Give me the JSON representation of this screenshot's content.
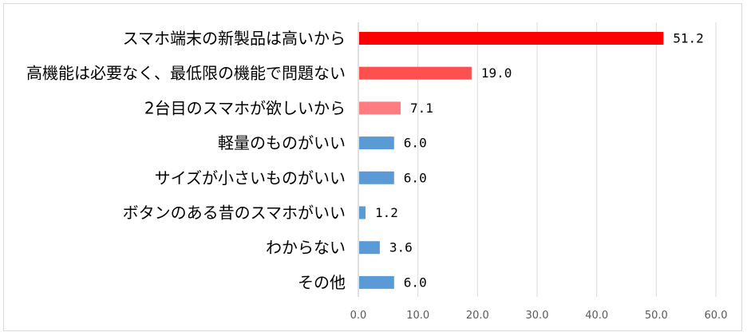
{
  "chart_data": {
    "type": "bar",
    "orientation": "horizontal",
    "categories": [
      "スマホ端末の新製品は高いから",
      "高機能は必要なく、最低限の機能で問題ない",
      "2台目のスマホが欲しいから",
      "軽量のものがいい",
      "サイズが小さいものがいい",
      "ボタンのある昔のスマホがいい",
      "わからない",
      "その他"
    ],
    "values": [
      51.2,
      19.0,
      7.1,
      6.0,
      6.0,
      1.2,
      3.6,
      6.0
    ],
    "value_labels": [
      "51.2",
      "19.0",
      "7.1",
      "6.0",
      "6.0",
      "1.2",
      "3.6",
      "6.0"
    ],
    "bar_colors": [
      "#ff0000",
      "#ff5050",
      "#ff7c80",
      "#5b9bd5",
      "#5b9bd5",
      "#5b9bd5",
      "#5b9bd5",
      "#5b9bd5"
    ],
    "xlim": [
      0,
      60
    ],
    "xticks": [
      0,
      10,
      20,
      30,
      40,
      50,
      60
    ],
    "xtick_labels": [
      "0.0",
      "10.0",
      "20.0",
      "30.0",
      "40.0",
      "50.0",
      "60.0"
    ],
    "grid": "vertical",
    "title": "",
    "xlabel": "",
    "ylabel": ""
  },
  "colors": {
    "grid": "#d9d9d9",
    "axis": "#bfbfbf",
    "tick_text": "#595959"
  }
}
